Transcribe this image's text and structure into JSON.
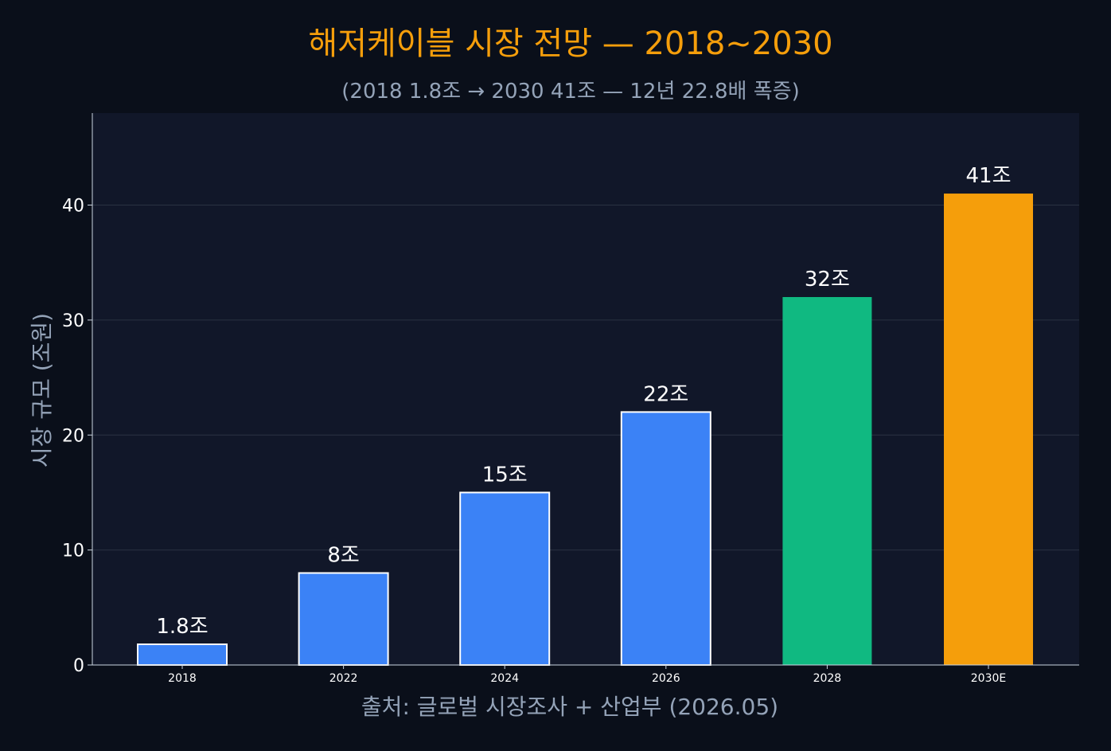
{
  "chart_data": {
    "type": "bar",
    "title": "해저케이블 시장 전망 — 2018~2030",
    "subtitle": "(2018 1.8조 → 2030 41조 — 12년 22.8배 폭증)",
    "ylabel": "시장 규모 (조원)",
    "xlabel": "출처: 글로벌 시장조사 + 산업부 (2026.05)",
    "categories": [
      "2018",
      "2022",
      "2024",
      "2026",
      "2028",
      "2030E"
    ],
    "values": [
      1.8,
      8,
      15,
      22,
      32,
      41
    ],
    "data_labels": [
      "1.8조",
      "8조",
      "15조",
      "22조",
      "32조",
      "41조"
    ],
    "bar_colors": [
      "#3b82f6",
      "#3b82f6",
      "#3b82f6",
      "#3b82f6",
      "#10b981",
      "#f59e0b"
    ],
    "bar_outlined": [
      true,
      true,
      true,
      true,
      false,
      false
    ],
    "yticks": [
      0,
      10,
      20,
      30,
      40
    ],
    "ylim": [
      0,
      48
    ],
    "grid": true,
    "colors": {
      "page_background": "#0a0f1a",
      "plot_background": "#111729",
      "title": "#f59e0b",
      "subtitle": "#94a3b8",
      "axis_label": "#94a3b8",
      "tick_label": "#ffffff",
      "grid": "#2a3242"
    }
  }
}
